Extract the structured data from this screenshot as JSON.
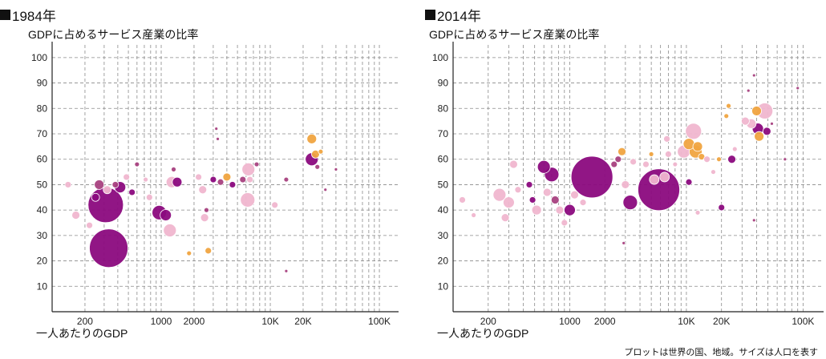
{
  "note": "プロットは世界の国、地域。サイズは人口を表す",
  "chart_data": [
    {
      "type": "scatter",
      "title": "1984年",
      "ylabel": "GDPに占めるサービス産業の比率",
      "xlabel": "一人あたりのGDP",
      "x_scale": "log",
      "xlim": [
        100,
        150000
      ],
      "ylim": [
        0,
        105
      ],
      "y_ticks": [
        "10",
        "20",
        "30",
        "40",
        "50",
        "60",
        "70",
        "80",
        "90",
        "100"
      ],
      "x_ticks": [
        "200",
        "1000",
        "2000",
        "10K",
        "20K",
        "100K"
      ],
      "colors": {
        "purple": "#8b0a7e",
        "pink": "#f0b6cf",
        "orange": "#f0a440",
        "mauve": "#a8417f"
      },
      "points": [
        {
          "x": 310,
          "y": 42,
          "size": 22,
          "color": "purple"
        },
        {
          "x": 330,
          "y": 25,
          "size": 24,
          "color": "purple"
        },
        {
          "x": 140,
          "y": 50,
          "size": 4,
          "color": "pink"
        },
        {
          "x": 165,
          "y": 38,
          "size": 5,
          "color": "pink"
        },
        {
          "x": 220,
          "y": 34,
          "size": 4,
          "color": "pink"
        },
        {
          "x": 250,
          "y": 45,
          "size": 5,
          "color": "purple"
        },
        {
          "x": 270,
          "y": 50,
          "size": 6,
          "color": "mauve"
        },
        {
          "x": 320,
          "y": 48,
          "size": 5,
          "color": "pink"
        },
        {
          "x": 380,
          "y": 50,
          "size": 4,
          "color": "mauve"
        },
        {
          "x": 420,
          "y": 49,
          "size": 7,
          "color": "purple"
        },
        {
          "x": 480,
          "y": 53,
          "size": 4,
          "color": "pink"
        },
        {
          "x": 540,
          "y": 47,
          "size": 4,
          "color": "purple"
        },
        {
          "x": 600,
          "y": 58,
          "size": 3,
          "color": "mauve"
        },
        {
          "x": 720,
          "y": 52,
          "size": 3,
          "color": "pink"
        },
        {
          "x": 780,
          "y": 45,
          "size": 4,
          "color": "pink"
        },
        {
          "x": 960,
          "y": 39,
          "size": 9,
          "color": "purple"
        },
        {
          "x": 1100,
          "y": 38,
          "size": 7,
          "color": "purple"
        },
        {
          "x": 1200,
          "y": 32,
          "size": 8,
          "color": "pink"
        },
        {
          "x": 1250,
          "y": 51,
          "size": 7,
          "color": "pink"
        },
        {
          "x": 1400,
          "y": 51,
          "size": 6,
          "color": "purple"
        },
        {
          "x": 1300,
          "y": 56,
          "size": 3,
          "color": "mauve"
        },
        {
          "x": 1800,
          "y": 23,
          "size": 3,
          "color": "orange"
        },
        {
          "x": 2200,
          "y": 53,
          "size": 4,
          "color": "pink"
        },
        {
          "x": 2400,
          "y": 48,
          "size": 5,
          "color": "pink"
        },
        {
          "x": 2500,
          "y": 37,
          "size": 5,
          "color": "pink"
        },
        {
          "x": 2600,
          "y": 40,
          "size": 3,
          "color": "mauve"
        },
        {
          "x": 2700,
          "y": 24,
          "size": 4,
          "color": "orange"
        },
        {
          "x": 3000,
          "y": 52,
          "size": 4,
          "color": "purple"
        },
        {
          "x": 3200,
          "y": 72,
          "size": 2,
          "color": "mauve"
        },
        {
          "x": 3300,
          "y": 68,
          "size": 2,
          "color": "mauve"
        },
        {
          "x": 3500,
          "y": 51,
          "size": 4,
          "color": "mauve"
        },
        {
          "x": 4000,
          "y": 53,
          "size": 5,
          "color": "orange"
        },
        {
          "x": 4500,
          "y": 50,
          "size": 4,
          "color": "purple"
        },
        {
          "x": 5600,
          "y": 52,
          "size": 4,
          "color": "mauve"
        },
        {
          "x": 6300,
          "y": 56,
          "size": 8,
          "color": "pink"
        },
        {
          "x": 6500,
          "y": 52,
          "size": 4,
          "color": "pink"
        },
        {
          "x": 6200,
          "y": 44,
          "size": 9,
          "color": "pink"
        },
        {
          "x": 7500,
          "y": 58,
          "size": 3,
          "color": "mauve"
        },
        {
          "x": 11000,
          "y": 42,
          "size": 4,
          "color": "pink"
        },
        {
          "x": 14000,
          "y": 16,
          "size": 2,
          "color": "mauve"
        },
        {
          "x": 14000,
          "y": 52,
          "size": 3,
          "color": "mauve"
        },
        {
          "x": 24000,
          "y": 68,
          "size": 6,
          "color": "orange"
        },
        {
          "x": 24000,
          "y": 60,
          "size": 8,
          "color": "purple"
        },
        {
          "x": 26000,
          "y": 62,
          "size": 5,
          "color": "orange"
        },
        {
          "x": 27000,
          "y": 57,
          "size": 3,
          "color": "mauve"
        },
        {
          "x": 29000,
          "y": 63,
          "size": 3,
          "color": "orange"
        },
        {
          "x": 40000,
          "y": 56,
          "size": 2,
          "color": "mauve"
        },
        {
          "x": 32000,
          "y": 48,
          "size": 2,
          "color": "mauve"
        }
      ]
    },
    {
      "type": "scatter",
      "title": "2014年",
      "ylabel": "GDPに占めるサービス産業の比率",
      "xlabel": "一人あたりのGDP",
      "x_scale": "log",
      "xlim": [
        100,
        150000
      ],
      "ylim": [
        0,
        105
      ],
      "y_ticks": [
        "10",
        "20",
        "30",
        "40",
        "50",
        "60",
        "70",
        "80",
        "90",
        "100"
      ],
      "x_ticks": [
        "200",
        "1000",
        "2000",
        "10K",
        "20K",
        "100K"
      ],
      "colors": {
        "purple": "#8b0a7e",
        "pink": "#f0b6cf",
        "orange": "#f0a440",
        "mauve": "#a8417f"
      },
      "points": [
        {
          "x": 1550,
          "y": 53,
          "size": 26,
          "color": "purple"
        },
        {
          "x": 5800,
          "y": 48,
          "size": 26,
          "color": "purple"
        },
        {
          "x": 120,
          "y": 44,
          "size": 4,
          "color": "pink"
        },
        {
          "x": 150,
          "y": 38,
          "size": 3,
          "color": "pink"
        },
        {
          "x": 250,
          "y": 46,
          "size": 8,
          "color": "pink"
        },
        {
          "x": 300,
          "y": 43,
          "size": 7,
          "color": "pink"
        },
        {
          "x": 280,
          "y": 37,
          "size": 5,
          "color": "pink"
        },
        {
          "x": 330,
          "y": 58,
          "size": 5,
          "color": "pink"
        },
        {
          "x": 360,
          "y": 48,
          "size": 4,
          "color": "pink"
        },
        {
          "x": 450,
          "y": 50,
          "size": 4,
          "color": "purple"
        },
        {
          "x": 480,
          "y": 44,
          "size": 4,
          "color": "purple"
        },
        {
          "x": 520,
          "y": 40,
          "size": 6,
          "color": "pink"
        },
        {
          "x": 600,
          "y": 57,
          "size": 8,
          "color": "purple"
        },
        {
          "x": 640,
          "y": 47,
          "size": 5,
          "color": "pink"
        },
        {
          "x": 700,
          "y": 54,
          "size": 9,
          "color": "purple"
        },
        {
          "x": 750,
          "y": 44,
          "size": 5,
          "color": "mauve"
        },
        {
          "x": 820,
          "y": 40,
          "size": 5,
          "color": "pink"
        },
        {
          "x": 900,
          "y": 35,
          "size": 4,
          "color": "pink"
        },
        {
          "x": 1000,
          "y": 40,
          "size": 7,
          "color": "purple"
        },
        {
          "x": 1100,
          "y": 46,
          "size": 5,
          "color": "pink"
        },
        {
          "x": 1300,
          "y": 43,
          "size": 4,
          "color": "pink"
        },
        {
          "x": 2400,
          "y": 58,
          "size": 4,
          "color": "mauve"
        },
        {
          "x": 2600,
          "y": 60,
          "size": 4,
          "color": "mauve"
        },
        {
          "x": 2800,
          "y": 63,
          "size": 5,
          "color": "orange"
        },
        {
          "x": 2900,
          "y": 27,
          "size": 2,
          "color": "mauve"
        },
        {
          "x": 3300,
          "y": 43,
          "size": 9,
          "color": "purple"
        },
        {
          "x": 3000,
          "y": 50,
          "size": 5,
          "color": "pink"
        },
        {
          "x": 3500,
          "y": 59,
          "size": 4,
          "color": "pink"
        },
        {
          "x": 4500,
          "y": 58,
          "size": 4,
          "color": "pink"
        },
        {
          "x": 5000,
          "y": 62,
          "size": 3,
          "color": "orange"
        },
        {
          "x": 5300,
          "y": 52,
          "size": 6,
          "color": "pink"
        },
        {
          "x": 6500,
          "y": 53,
          "size": 6,
          "color": "pink"
        },
        {
          "x": 6800,
          "y": 68,
          "size": 4,
          "color": "pink"
        },
        {
          "x": 7000,
          "y": 62,
          "size": 4,
          "color": "pink"
        },
        {
          "x": 8000,
          "y": 58,
          "size": 3,
          "color": "pink"
        },
        {
          "x": 9500,
          "y": 63,
          "size": 8,
          "color": "pink"
        },
        {
          "x": 10500,
          "y": 66,
          "size": 7,
          "color": "orange"
        },
        {
          "x": 11500,
          "y": 71,
          "size": 10,
          "color": "pink"
        },
        {
          "x": 12000,
          "y": 63,
          "size": 8,
          "color": "orange"
        },
        {
          "x": 12500,
          "y": 65,
          "size": 6,
          "color": "orange"
        },
        {
          "x": 13500,
          "y": 61,
          "size": 4,
          "color": "orange"
        },
        {
          "x": 10500,
          "y": 51,
          "size": 4,
          "color": "purple"
        },
        {
          "x": 12500,
          "y": 39,
          "size": 3,
          "color": "pink"
        },
        {
          "x": 15000,
          "y": 60,
          "size": 4,
          "color": "pink"
        },
        {
          "x": 17000,
          "y": 55,
          "size": 3,
          "color": "pink"
        },
        {
          "x": 19000,
          "y": 60,
          "size": 3,
          "color": "orange"
        },
        {
          "x": 20000,
          "y": 41,
          "size": 4,
          "color": "purple"
        },
        {
          "x": 22000,
          "y": 77,
          "size": 3,
          "color": "orange"
        },
        {
          "x": 23000,
          "y": 81,
          "size": 3,
          "color": "orange"
        },
        {
          "x": 24500,
          "y": 60,
          "size": 5,
          "color": "purple"
        },
        {
          "x": 26000,
          "y": 64,
          "size": 3,
          "color": "pink"
        },
        {
          "x": 32000,
          "y": 75,
          "size": 5,
          "color": "pink"
        },
        {
          "x": 36000,
          "y": 74,
          "size": 6,
          "color": "pink"
        },
        {
          "x": 40000,
          "y": 79,
          "size": 6,
          "color": "orange"
        },
        {
          "x": 41000,
          "y": 72,
          "size": 7,
          "color": "purple"
        },
        {
          "x": 42000,
          "y": 69,
          "size": 6,
          "color": "orange"
        },
        {
          "x": 47000,
          "y": 79,
          "size": 10,
          "color": "pink"
        },
        {
          "x": 49000,
          "y": 71,
          "size": 5,
          "color": "purple"
        },
        {
          "x": 38000,
          "y": 93,
          "size": 2,
          "color": "mauve"
        },
        {
          "x": 38000,
          "y": 36,
          "size": 2,
          "color": "mauve"
        },
        {
          "x": 34000,
          "y": 87,
          "size": 2,
          "color": "mauve"
        },
        {
          "x": 54000,
          "y": 74,
          "size": 2,
          "color": "mauve"
        },
        {
          "x": 70000,
          "y": 60,
          "size": 2,
          "color": "mauve"
        },
        {
          "x": 90000,
          "y": 88,
          "size": 2,
          "color": "mauve"
        }
      ]
    }
  ]
}
